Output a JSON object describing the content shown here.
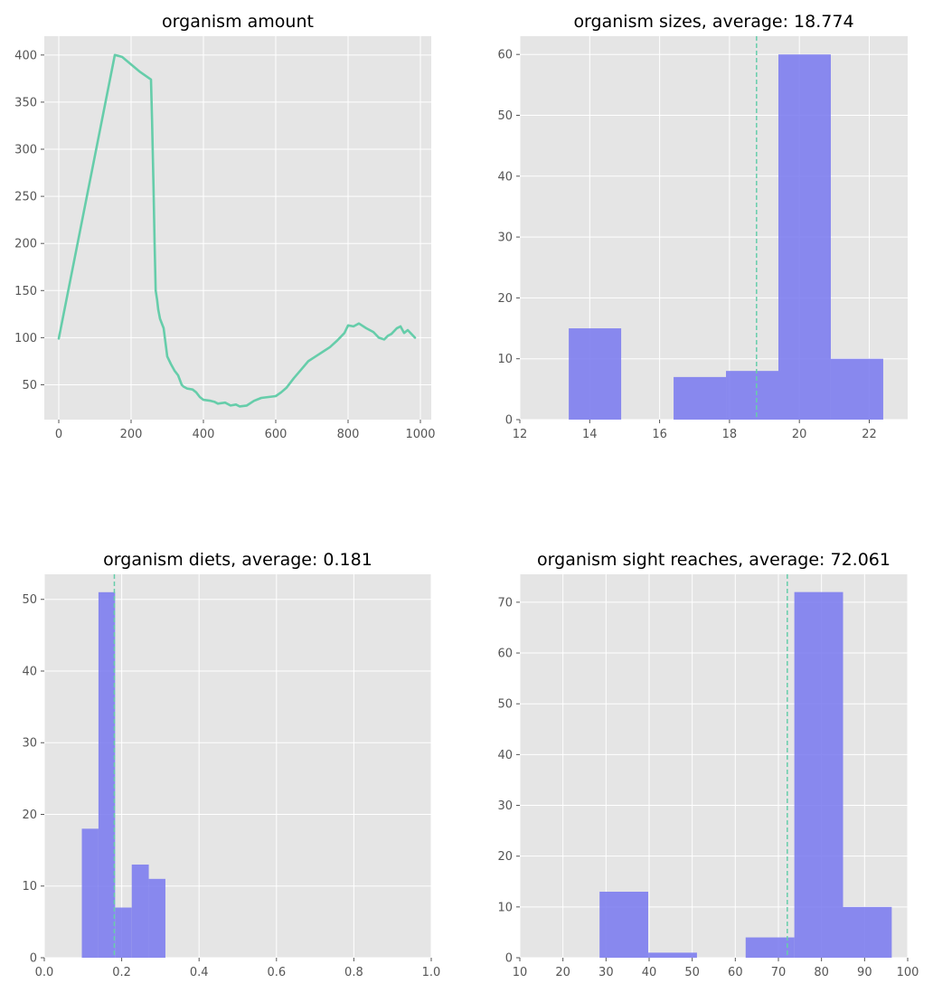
{
  "chart_data": [
    {
      "type": "line",
      "title": "organism amount",
      "xlim": [
        -40,
        1030
      ],
      "ylim": [
        13,
        420
      ],
      "xticks": [
        0,
        200,
        400,
        600,
        800,
        1000
      ],
      "yticks": [
        50,
        100,
        150,
        200,
        250,
        300,
        350,
        400
      ],
      "grid": true,
      "series": [
        {
          "color": "#66cdaa",
          "x": [
            0,
            155,
            175,
            200,
            225,
            255,
            258,
            262,
            265,
            268,
            272,
            275,
            280,
            290,
            300,
            310,
            320,
            330,
            340,
            345,
            355,
            370,
            380,
            390,
            400,
            420,
            430,
            440,
            460,
            475,
            490,
            500,
            520,
            540,
            560,
            580,
            600,
            615,
            630,
            650,
            670,
            690,
            710,
            730,
            750,
            770,
            790,
            800,
            815,
            830,
            850,
            870,
            885,
            900,
            910,
            920,
            935,
            945,
            955,
            965,
            975,
            985
          ],
          "y": [
            99,
            400,
            398,
            390,
            382,
            374,
            330,
            260,
            200,
            150,
            140,
            130,
            120,
            110,
            80,
            72,
            65,
            60,
            50,
            48,
            46,
            45,
            42,
            37,
            34,
            33,
            32,
            30,
            31,
            28,
            29,
            27,
            28,
            33,
            36,
            37,
            38,
            42,
            47,
            57,
            66,
            75,
            80,
            85,
            90,
            97,
            105,
            113,
            112,
            115,
            110,
            106,
            100,
            98,
            102,
            104,
            110,
            112,
            105,
            108,
            104,
            100
          ]
        }
      ]
    },
    {
      "type": "bar",
      "title": "organism sizes, average: 18.774",
      "xlim": [
        12,
        23.1
      ],
      "ylim": [
        0,
        63
      ],
      "xticks": [
        12,
        14,
        16,
        18,
        20,
        22
      ],
      "yticks": [
        0,
        10,
        20,
        30,
        40,
        50,
        60
      ],
      "grid": true,
      "color": "#7b7bef",
      "average": 18.774,
      "average_color": "#66cdaa",
      "bins": [
        {
          "x0": 13.4,
          "x1": 14.9,
          "count": 15
        },
        {
          "x0": 16.4,
          "x1": 17.9,
          "count": 7
        },
        {
          "x0": 17.9,
          "x1": 19.4,
          "count": 8
        },
        {
          "x0": 19.4,
          "x1": 20.9,
          "count": 60
        },
        {
          "x0": 20.9,
          "x1": 22.4,
          "count": 10
        }
      ]
    },
    {
      "type": "bar",
      "title": "organism diets, average: 0.181",
      "xlim": [
        0,
        1.0
      ],
      "ylim": [
        0,
        53.5
      ],
      "xticks": [
        0.0,
        0.2,
        0.4,
        0.6,
        0.8,
        1.0
      ],
      "yticks": [
        0,
        10,
        20,
        30,
        40,
        50
      ],
      "grid": true,
      "color": "#7b7bef",
      "average": 0.181,
      "average_color": "#66cdaa",
      "bins": [
        {
          "x0": 0.097,
          "x1": 0.14,
          "count": 18
        },
        {
          "x0": 0.14,
          "x1": 0.183,
          "count": 51
        },
        {
          "x0": 0.183,
          "x1": 0.226,
          "count": 7
        },
        {
          "x0": 0.226,
          "x1": 0.27,
          "count": 13
        },
        {
          "x0": 0.27,
          "x1": 0.313,
          "count": 11
        }
      ]
    },
    {
      "type": "bar",
      "title": "organism sight reaches, average: 72.061",
      "xlim": [
        10,
        100
      ],
      "ylim": [
        0,
        75.5
      ],
      "xticks": [
        10,
        20,
        30,
        40,
        50,
        60,
        70,
        80,
        90,
        100
      ],
      "yticks": [
        0,
        10,
        20,
        30,
        40,
        50,
        60,
        70
      ],
      "grid": true,
      "color": "#7b7bef",
      "average": 72.061,
      "average_color": "#66cdaa",
      "bins": [
        {
          "x0": 28.5,
          "x1": 39.8,
          "count": 13
        },
        {
          "x0": 39.8,
          "x1": 51.1,
          "count": 1
        },
        {
          "x0": 62.4,
          "x1": 73.7,
          "count": 4
        },
        {
          "x0": 73.7,
          "x1": 85.0,
          "count": 72
        },
        {
          "x0": 85.0,
          "x1": 96.3,
          "count": 10
        }
      ]
    }
  ]
}
